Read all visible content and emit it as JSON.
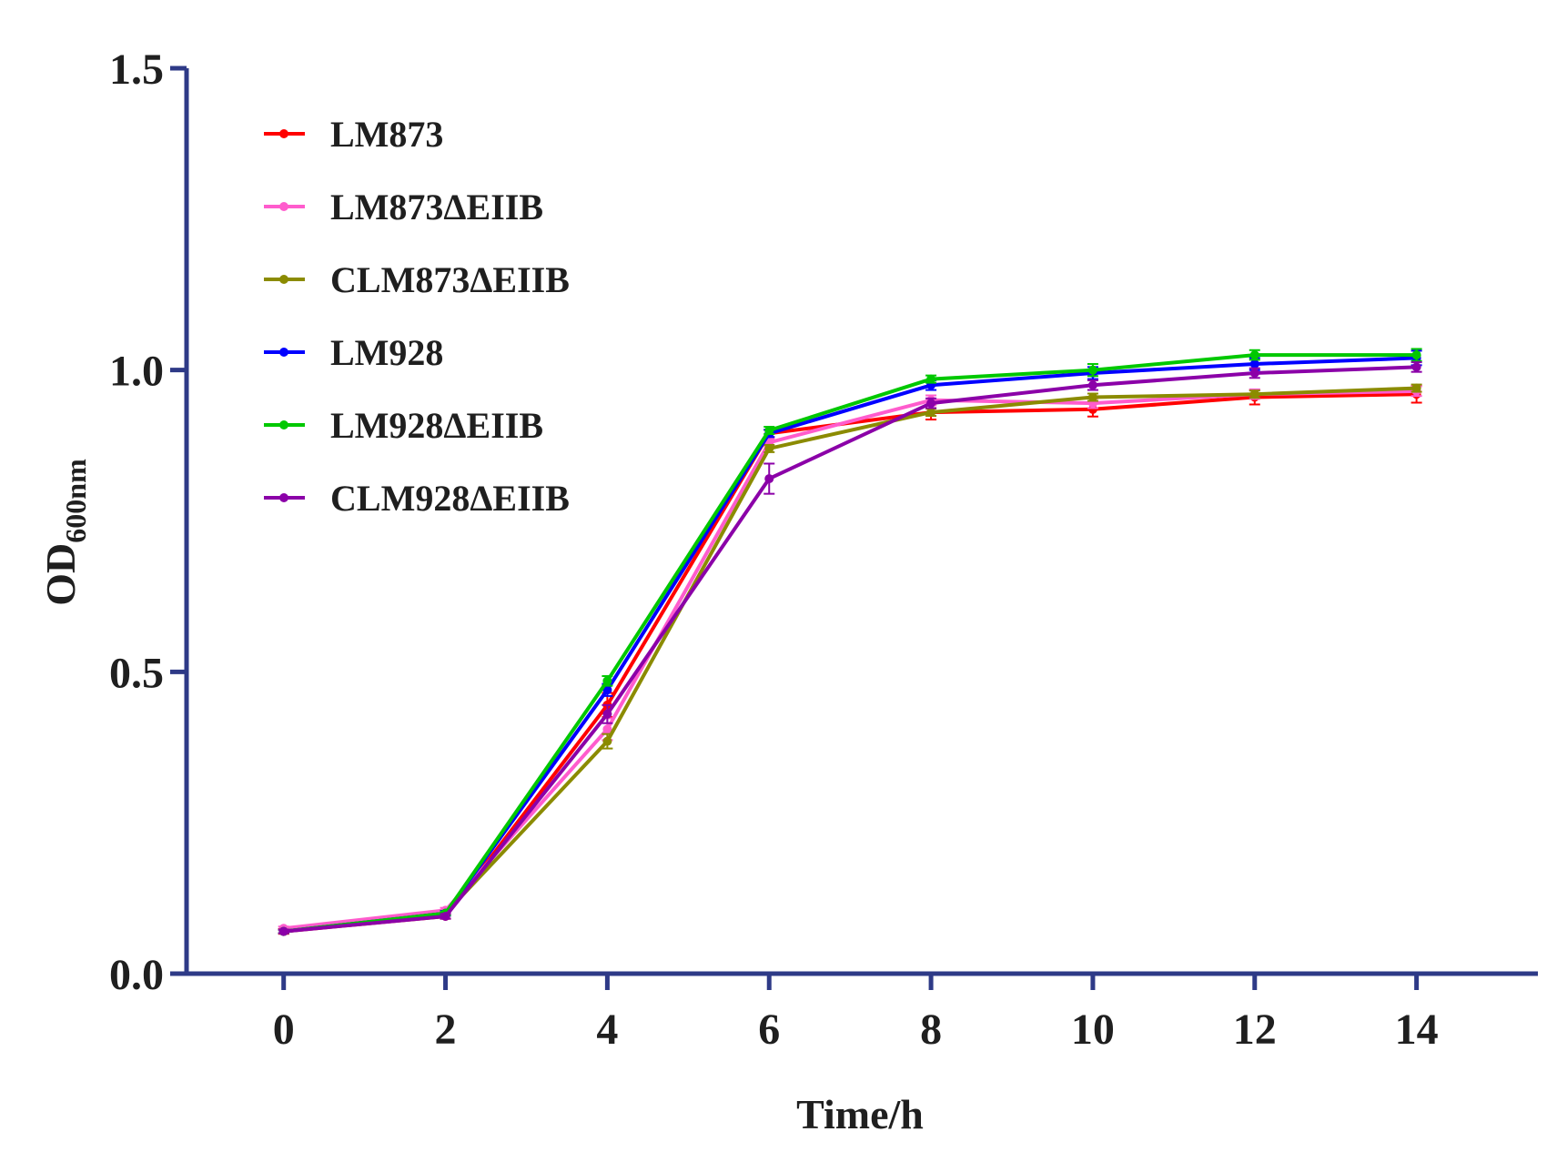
{
  "chart_data": {
    "type": "line",
    "title": "",
    "xlabel": "Time/h",
    "ylabel_main": "OD",
    "ylabel_sub": "600nm",
    "x": [
      0,
      2,
      4,
      6,
      8,
      10,
      12,
      14
    ],
    "xlim": [
      -1.2,
      15.5
    ],
    "ylim": [
      0,
      1.5
    ],
    "xticks": [
      "0",
      "2",
      "4",
      "6",
      "8",
      "10",
      "12",
      "14"
    ],
    "yticks": [
      "0.0",
      "0.5",
      "1.0",
      "1.5"
    ],
    "axis_color": "#2e3a87",
    "legend_position": "top-left",
    "series": [
      {
        "name": "LM873",
        "color": "#ff0000",
        "values": [
          0.07,
          0.095,
          0.445,
          0.895,
          0.93,
          0.935,
          0.955,
          0.96
        ],
        "errors": [
          0.004,
          0.004,
          0.02,
          0.006,
          0.012,
          0.012,
          0.012,
          0.014
        ]
      },
      {
        "name": "LM873ΔEIIB",
        "color": "#ff5ccd",
        "values": [
          0.075,
          0.105,
          0.405,
          0.88,
          0.95,
          0.945,
          0.96,
          0.965
        ],
        "errors": [
          0.003,
          0.004,
          0.018,
          0.006,
          0.008,
          0.008,
          0.008,
          0.008
        ]
      },
      {
        "name": "CLM873ΔEIIB",
        "color": "#8b8b00",
        "values": [
          0.07,
          0.1,
          0.385,
          0.87,
          0.93,
          0.955,
          0.96,
          0.97
        ],
        "errors": [
          0.003,
          0.004,
          0.012,
          0.006,
          0.006,
          0.006,
          0.006,
          0.006
        ]
      },
      {
        "name": "LM928",
        "color": "#0000ff",
        "values": [
          0.07,
          0.1,
          0.47,
          0.895,
          0.975,
          0.995,
          1.01,
          1.02
        ],
        "errors": [
          0.003,
          0.004,
          0.01,
          0.006,
          0.008,
          0.01,
          0.01,
          0.012
        ]
      },
      {
        "name": "LM928ΔEIIB",
        "color": "#00c800",
        "values": [
          0.07,
          0.1,
          0.485,
          0.9,
          0.985,
          1.0,
          1.025,
          1.025
        ],
        "errors": [
          0.003,
          0.003,
          0.008,
          0.006,
          0.006,
          0.01,
          0.008,
          0.01
        ]
      },
      {
        "name": "CLM928ΔEIIB",
        "color": "#8b00a8",
        "values": [
          0.07,
          0.095,
          0.43,
          0.82,
          0.945,
          0.975,
          0.995,
          1.005
        ],
        "errors": [
          0.003,
          0.004,
          0.015,
          0.025,
          0.008,
          0.008,
          0.008,
          0.008
        ]
      }
    ]
  }
}
